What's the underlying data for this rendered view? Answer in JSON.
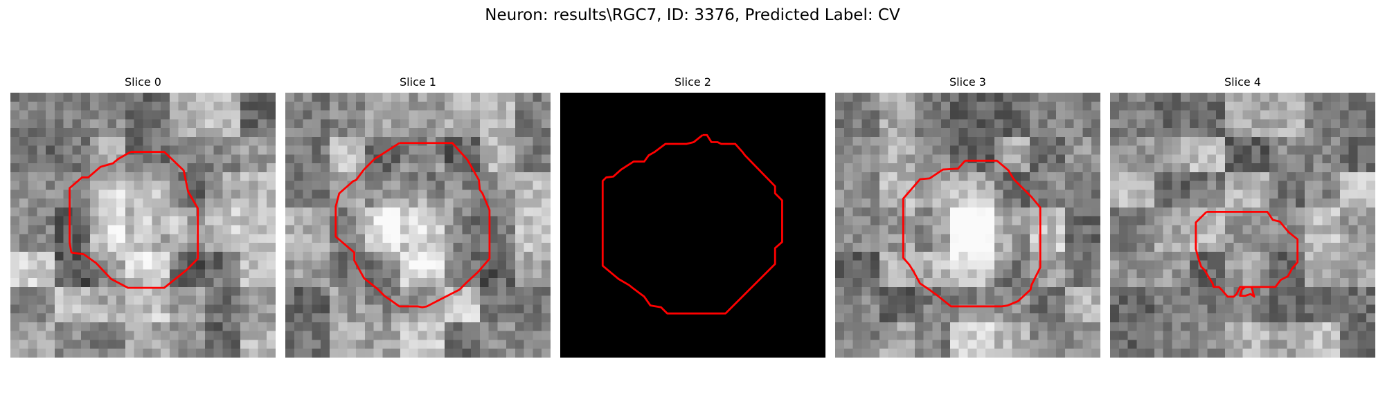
{
  "figure": {
    "title": "Neuron: results\\RGC7, ID: 3376, Predicted Label: CV"
  },
  "overlay_color": "#ff0000",
  "panels": [
    {
      "title": "Slice 0",
      "image": "grayscale-microscopy-slice",
      "blank": false,
      "seed": 11,
      "spot": 0.45
    },
    {
      "title": "Slice 1",
      "image": "grayscale-microscopy-slice",
      "blank": false,
      "seed": 23,
      "spot": 0.45
    },
    {
      "title": "Slice 2",
      "image": "black-empty-slice",
      "blank": true,
      "seed": 0,
      "spot": 0
    },
    {
      "title": "Slice 3",
      "image": "grayscale-microscopy-slice",
      "blank": false,
      "seed": 37,
      "spot": 0.35
    },
    {
      "title": "Slice 4",
      "image": "grayscale-microscopy-slice",
      "blank": false,
      "seed": 53,
      "spot": 0.1
    }
  ]
}
